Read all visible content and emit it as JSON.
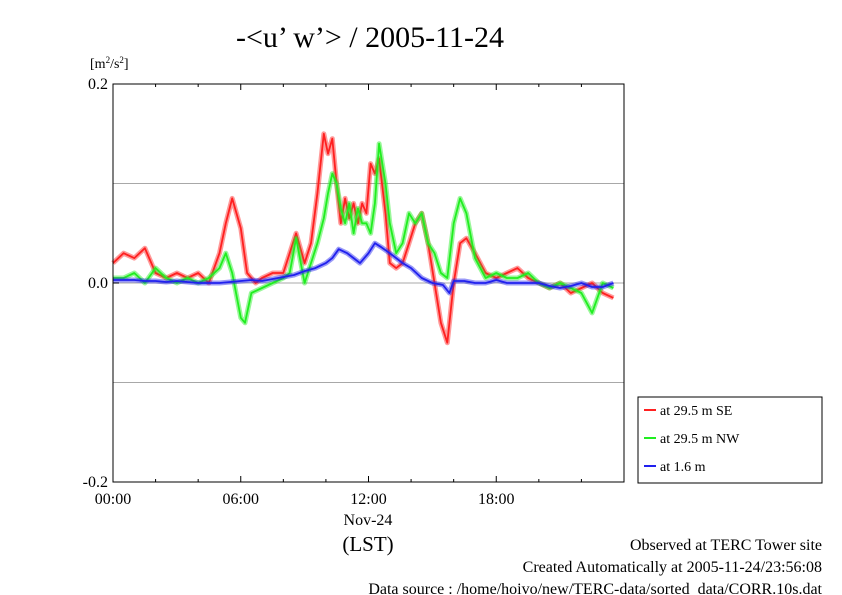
{
  "chart_data": {
    "type": "line",
    "title": "-<u’ w’> / 2005-11-24",
    "ylabel": "[m2/s2]",
    "xlabel": "(LST)",
    "date_label": "Nov-24",
    "x_unit": "hours (LST)",
    "xlim": [
      0,
      24
    ],
    "ylim": [
      -0.2,
      0.2
    ],
    "x_ticks": [
      0,
      6,
      12,
      18
    ],
    "x_tick_labels": [
      "00:00",
      "06:00",
      "12:00",
      "18:00"
    ],
    "y_ticks": [
      -0.2,
      0.0,
      0.2
    ],
    "y_tick_labels": [
      "-0.2",
      "0.0",
      "0.2"
    ],
    "y_gridlines": [
      -0.1,
      0.0,
      0.1
    ],
    "grid": true,
    "legend_position": "right",
    "series": [
      {
        "name": "at 29.5 m SE",
        "color": "#ff2020",
        "x": [
          0,
          0.5,
          1,
          1.5,
          2,
          2.5,
          3,
          3.5,
          4,
          4.5,
          5,
          5.3,
          5.6,
          6,
          6.3,
          6.7,
          7,
          7.5,
          8,
          8.3,
          8.6,
          9,
          9.3,
          9.6,
          9.9,
          10.1,
          10.3,
          10.5,
          10.7,
          10.9,
          11.1,
          11.3,
          11.5,
          11.7,
          11.9,
          12.1,
          12.3,
          12.5,
          12.8,
          13,
          13.3,
          13.6,
          13.9,
          14.2,
          14.5,
          14.8,
          15.1,
          15.4,
          15.7,
          16,
          16.3,
          16.6,
          17,
          17.5,
          18,
          18.5,
          19,
          19.5,
          20,
          20.5,
          21,
          21.5,
          22,
          22.5,
          23,
          23.5
        ],
        "values": [
          0.02,
          0.03,
          0.025,
          0.035,
          0.01,
          0.005,
          0.01,
          0.005,
          0.01,
          0.0,
          0.03,
          0.06,
          0.085,
          0.055,
          0.01,
          0.0,
          0.005,
          0.01,
          0.01,
          0.03,
          0.05,
          0.02,
          0.04,
          0.09,
          0.15,
          0.13,
          0.145,
          0.1,
          0.06,
          0.085,
          0.065,
          0.08,
          0.06,
          0.08,
          0.07,
          0.12,
          0.11,
          0.125,
          0.07,
          0.02,
          0.015,
          0.02,
          0.04,
          0.06,
          0.07,
          0.04,
          0.0,
          -0.04,
          -0.06,
          0.0,
          0.04,
          0.045,
          0.03,
          0.01,
          0.005,
          0.01,
          0.015,
          0.005,
          0.0,
          -0.005,
          0.0,
          -0.01,
          -0.005,
          0.0,
          -0.01,
          -0.015
        ]
      },
      {
        "name": "at 29.5 m NW",
        "color": "#20ee20",
        "x": [
          0,
          0.5,
          1,
          1.5,
          2,
          2.5,
          3,
          3.5,
          4,
          4.5,
          5,
          5.3,
          5.6,
          6,
          6.2,
          6.5,
          7,
          7.5,
          8,
          8.3,
          8.6,
          9,
          9.3,
          9.6,
          9.9,
          10.1,
          10.3,
          10.5,
          10.7,
          10.9,
          11.1,
          11.3,
          11.5,
          11.7,
          11.9,
          12.1,
          12.3,
          12.5,
          12.8,
          13,
          13.3,
          13.6,
          13.9,
          14.2,
          14.5,
          14.8,
          15.1,
          15.4,
          15.7,
          16,
          16.3,
          16.6,
          17,
          17.5,
          18,
          18.5,
          19,
          19.5,
          20,
          20.5,
          21,
          21.5,
          22,
          22.5,
          23,
          23.5
        ],
        "values": [
          0.005,
          0.005,
          0.01,
          0.0,
          0.015,
          0.005,
          0.0,
          0.005,
          0.0,
          0.005,
          0.015,
          0.03,
          0.01,
          -0.035,
          -0.04,
          -0.01,
          -0.005,
          0.0,
          0.005,
          0.01,
          0.045,
          0.0,
          0.02,
          0.04,
          0.065,
          0.09,
          0.11,
          0.1,
          0.075,
          0.06,
          0.08,
          0.05,
          0.075,
          0.06,
          0.06,
          0.05,
          0.08,
          0.14,
          0.1,
          0.06,
          0.03,
          0.04,
          0.07,
          0.06,
          0.07,
          0.04,
          0.03,
          0.01,
          0.005,
          0.06,
          0.085,
          0.07,
          0.025,
          0.005,
          0.01,
          0.005,
          0.005,
          0.01,
          0.0,
          -0.005,
          0.0,
          -0.005,
          -0.01,
          -0.03,
          0.0,
          -0.005
        ]
      },
      {
        "name": "at 1.6 m",
        "color": "#2020ee",
        "x": [
          0,
          0.5,
          1,
          1.5,
          2,
          2.5,
          3,
          3.5,
          4,
          4.5,
          5,
          5.5,
          6,
          6.5,
          7,
          7.5,
          8,
          8.5,
          9,
          9.5,
          10,
          10.3,
          10.6,
          11,
          11.3,
          11.6,
          12,
          12.3,
          12.6,
          13,
          13.3,
          13.6,
          14,
          14.5,
          15,
          15.5,
          15.8,
          16,
          16.5,
          17,
          17.5,
          18,
          18.5,
          19,
          19.5,
          20,
          20.5,
          21,
          21.5,
          22,
          22.5,
          23,
          23.5
        ],
        "values": [
          0.003,
          0.003,
          0.003,
          0.002,
          0.002,
          0.001,
          0.002,
          0.001,
          0.0,
          0.0,
          0.0,
          0.001,
          0.002,
          0.003,
          0.002,
          0.004,
          0.006,
          0.008,
          0.012,
          0.015,
          0.02,
          0.025,
          0.034,
          0.03,
          0.025,
          0.02,
          0.03,
          0.04,
          0.036,
          0.03,
          0.025,
          0.02,
          0.015,
          0.005,
          0.0,
          -0.002,
          -0.01,
          0.002,
          0.002,
          0.0,
          0.0,
          0.003,
          0.0,
          0.0,
          0.0,
          0.0,
          -0.003,
          -0.005,
          -0.003,
          0.0,
          -0.004,
          -0.004,
          0.0
        ]
      }
    ]
  },
  "footer": {
    "line1": "Observed at TERC Tower site",
    "line2": "Created Automatically at 2005-11-24/23:56:08",
    "line3": "Data source : /home/hoivo/new/TERC-data/sorted_data/CORR.10s.dat"
  }
}
